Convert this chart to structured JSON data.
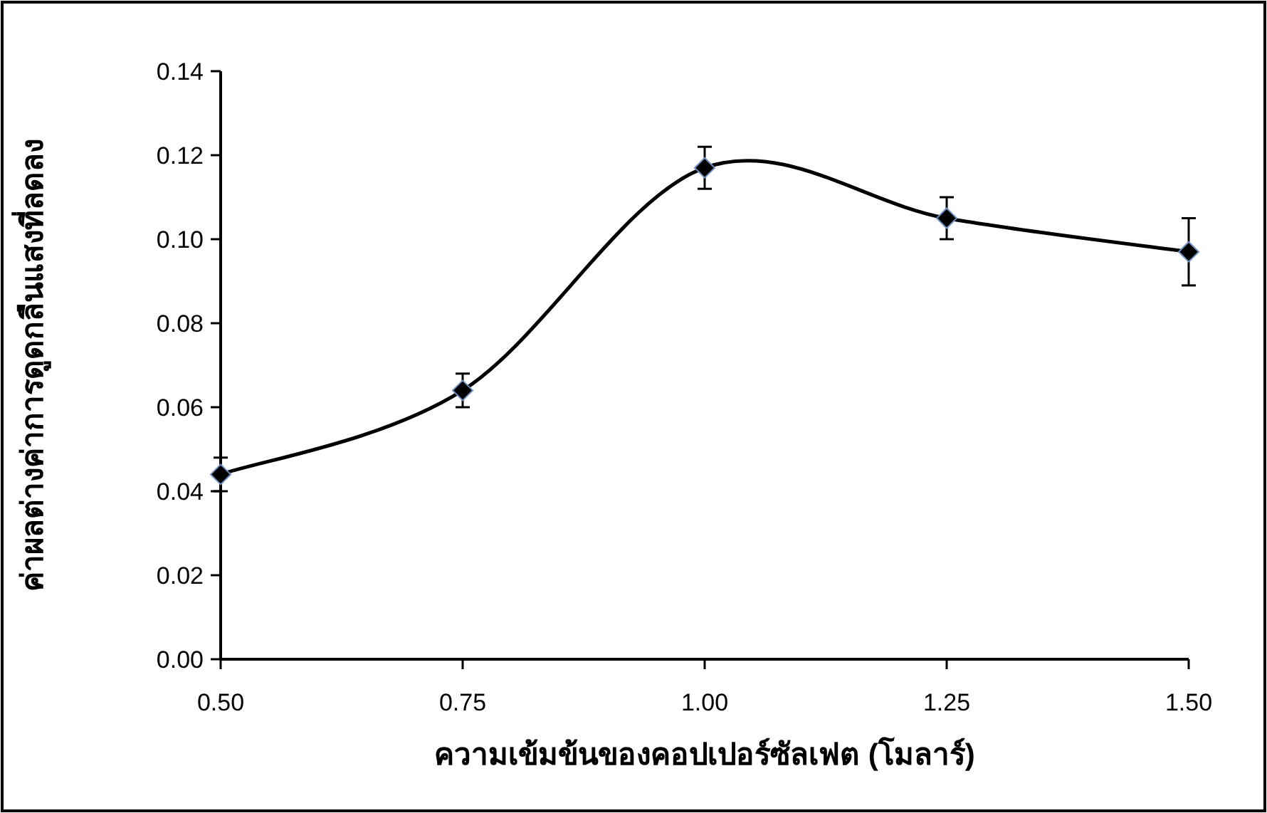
{
  "chart_data": {
    "type": "line",
    "xlabel": "ความเข้มข้นของคอปเปอร์ซัลเฟต (โมลาร์)",
    "ylabel": "ค่าผลต่างค่าการดูดกลืนแสงที่ลดลง",
    "x": [
      0.5,
      0.75,
      1.0,
      1.25,
      1.5
    ],
    "series": [
      {
        "color": "#000000",
        "values": [
          0.044,
          0.064,
          0.117,
          0.105,
          0.097
        ],
        "errors": [
          0.004,
          0.004,
          0.005,
          0.005,
          0.008
        ]
      }
    ],
    "xlim": [
      0.5,
      1.5
    ],
    "ylim": [
      0,
      0.14
    ],
    "xticks": [
      {
        "value": 0.5,
        "label": "0.50"
      },
      {
        "value": 0.75,
        "label": "0.75"
      },
      {
        "value": 1.0,
        "label": "1.00"
      },
      {
        "value": 1.25,
        "label": "1.25"
      },
      {
        "value": 1.5,
        "label": "1.50"
      }
    ],
    "yticks": [
      {
        "value": 0,
        "label": "0.00"
      },
      {
        "value": 0.02,
        "label": "0.02"
      },
      {
        "value": 0.04,
        "label": "0.04"
      },
      {
        "value": 0.06,
        "label": "0.06"
      },
      {
        "value": 0.08,
        "label": "0.08"
      },
      {
        "value": 0.1,
        "label": "0.10"
      },
      {
        "value": 0.12,
        "label": "0.12"
      },
      {
        "value": 0.14,
        "label": "0.14"
      }
    ],
    "grid": false,
    "marker": "diamond",
    "line_style": "solid"
  }
}
